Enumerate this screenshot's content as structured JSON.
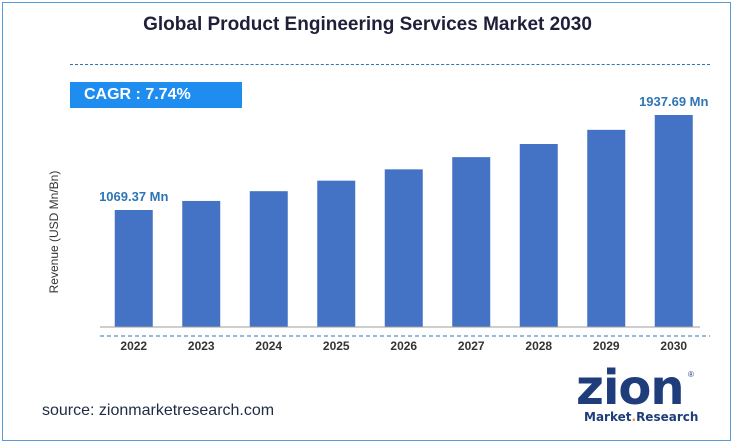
{
  "header": {
    "title": "Global Product Engineering Services Market 2030"
  },
  "cagr": {
    "label": "CAGR : 7.74%"
  },
  "footer": {
    "source": "source: zionmarketresearch.com"
  },
  "logo": {
    "word": "zion",
    "sub_a": "Market",
    "sub_dot": ".",
    "sub_b": "Research",
    "reg": "®"
  },
  "colors": {
    "bar": "#4472c4",
    "accent": "#1f8cf0",
    "label": "#2e75b6",
    "frame": "#5b9bd5"
  },
  "chart_data": {
    "type": "bar",
    "title": "Global Product Engineering Services Market 2030",
    "xlabel": "",
    "ylabel": "Revenue (USD Mn/Bn)",
    "categories": [
      "2022",
      "2023",
      "2024",
      "2025",
      "2026",
      "2027",
      "2028",
      "2029",
      "2030"
    ],
    "values": [
      1069.37,
      1152.1,
      1241.3,
      1337.4,
      1440.9,
      1552.5,
      1672.6,
      1802.1,
      1937.69
    ],
    "ylim": [
      0,
      2000
    ],
    "grid": false,
    "data_labels": [
      {
        "category": "2022",
        "text": "1069.37 Mn"
      },
      {
        "category": "2030",
        "text": "1937.69 Mn"
      }
    ]
  }
}
